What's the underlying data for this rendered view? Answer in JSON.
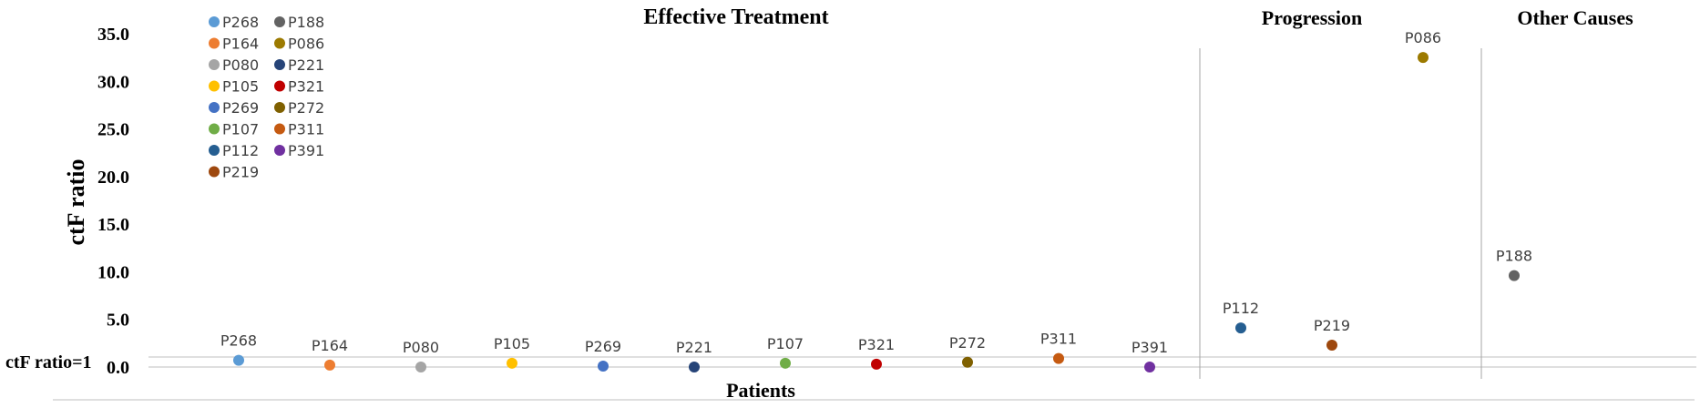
{
  "chart_data": {
    "type": "scatter",
    "ylabel": "ctF ratio",
    "xlabel": "Patients",
    "ylim": [
      0,
      35
    ],
    "yticks": [
      "0.0",
      "5.0",
      "10.0",
      "15.0",
      "20.0",
      "25.0",
      "30.0",
      "35.0"
    ],
    "reference_line": {
      "label": "ctF ratio=1",
      "value": 1
    },
    "groups": [
      "Effective Treatment",
      "Progression",
      "Other Causes"
    ],
    "legend_position": "top-left",
    "series": [
      {
        "name": "P268",
        "group": "Effective Treatment",
        "index": 1,
        "value": 0.7,
        "color": "#5b9bd5"
      },
      {
        "name": "P164",
        "group": "Effective Treatment",
        "index": 2,
        "value": 0.2,
        "color": "#ed7d31"
      },
      {
        "name": "P080",
        "group": "Effective Treatment",
        "index": 3,
        "value": 0.0,
        "color": "#a5a5a5"
      },
      {
        "name": "P105",
        "group": "Effective Treatment",
        "index": 4,
        "value": 0.4,
        "color": "#ffc000"
      },
      {
        "name": "P269",
        "group": "Effective Treatment",
        "index": 5,
        "value": 0.1,
        "color": "#4472c4"
      },
      {
        "name": "P221",
        "group": "Effective Treatment",
        "index": 6,
        "value": 0.0,
        "color": "#264478"
      },
      {
        "name": "P107",
        "group": "Effective Treatment",
        "index": 7,
        "value": 0.4,
        "color": "#70ad47"
      },
      {
        "name": "P321",
        "group": "Effective Treatment",
        "index": 8,
        "value": 0.3,
        "color": "#c00000"
      },
      {
        "name": "P272",
        "group": "Effective Treatment",
        "index": 9,
        "value": 0.5,
        "color": "#7f6000"
      },
      {
        "name": "P311",
        "group": "Effective Treatment",
        "index": 10,
        "value": 0.9,
        "color": "#c55a11"
      },
      {
        "name": "P391",
        "group": "Effective Treatment",
        "index": 11,
        "value": 0.0,
        "color": "#7030a0"
      },
      {
        "name": "P112",
        "group": "Progression",
        "index": 12,
        "value": 4.1,
        "color": "#255e91"
      },
      {
        "name": "P219",
        "group": "Progression",
        "index": 13,
        "value": 2.3,
        "color": "#9e480e"
      },
      {
        "name": "P086",
        "group": "Progression",
        "index": 14,
        "value": 32.5,
        "color": "#9c7a00"
      },
      {
        "name": "P188",
        "group": "Other Causes",
        "index": 15,
        "value": 9.6,
        "color": "#636363"
      }
    ],
    "legend_order": [
      "P268",
      "P188",
      "P164",
      "P086",
      "P080",
      "P221",
      "P105",
      "P321",
      "P269",
      "P272",
      "P107",
      "P311",
      "P112",
      "P391",
      "P219"
    ]
  }
}
